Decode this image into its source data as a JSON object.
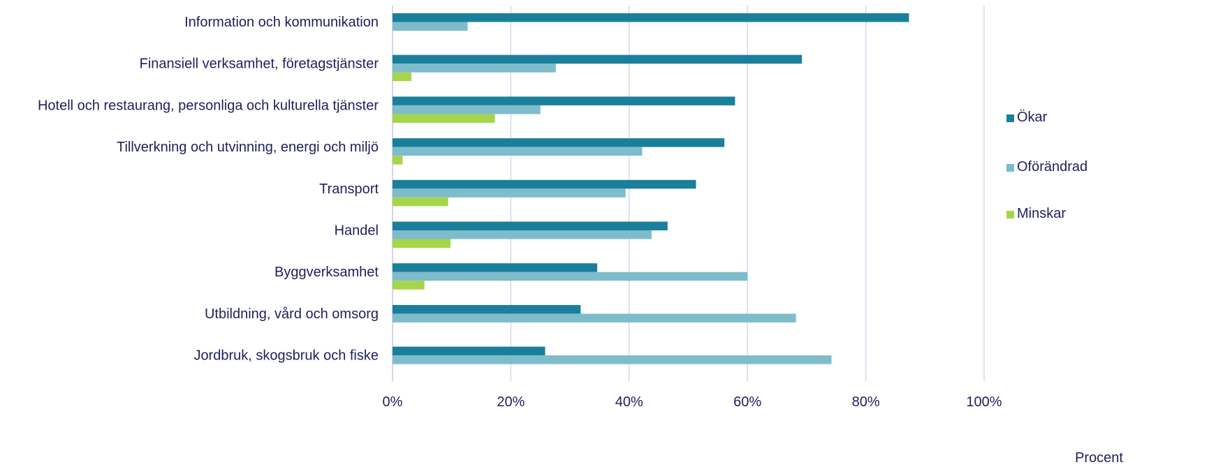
{
  "chart_data": {
    "type": "bar",
    "orientation": "horizontal",
    "categories": [
      "Information och kommunikation",
      "Finansiell verksamhet, företagstjänster",
      "Hotell och restaurang, personliga och kulturella tjänster",
      "Tillverkning och utvinning, energi och miljö",
      "Transport",
      "Handel",
      "Byggverksamhet",
      "Utbildning, vård och omsorg",
      "Jordbruk, skogsbruk och fiske"
    ],
    "series": [
      {
        "name": "Ökar",
        "color": "#1a7f9b",
        "values": [
          87.3,
          69.2,
          57.9,
          56.1,
          51.3,
          46.5,
          34.6,
          31.8,
          25.8
        ]
      },
      {
        "name": "Oförändrad",
        "color": "#7fbccb",
        "values": [
          12.7,
          27.6,
          25.0,
          42.2,
          39.4,
          43.8,
          60.0,
          68.2,
          74.2
        ]
      },
      {
        "name": "Minskar",
        "color": "#a5d54a",
        "values": [
          0,
          3.2,
          17.3,
          1.7,
          9.4,
          9.8,
          5.4,
          0,
          0
        ]
      }
    ],
    "xlim": [
      0,
      100
    ],
    "xticks": [
      "0%",
      "20%",
      "40%",
      "60%",
      "80%",
      "100%"
    ],
    "xlabel": "Procent",
    "grid": "vertical",
    "legend_position": "right"
  }
}
